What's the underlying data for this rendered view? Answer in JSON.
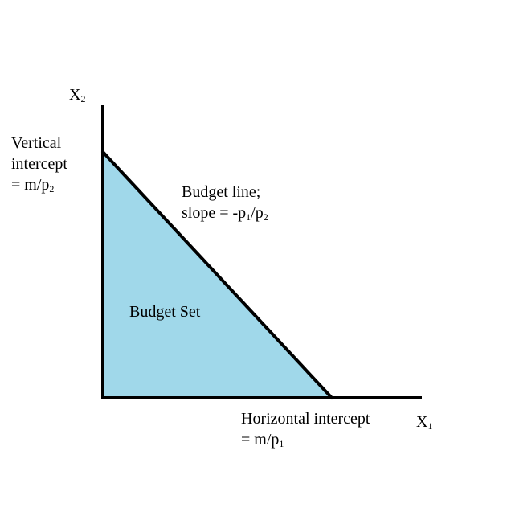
{
  "colors": {
    "budget_set_fill": "#a0d8ea",
    "line": "#000000",
    "background": "#ffffff"
  },
  "axes": {
    "y_label": {
      "letter": "X",
      "subscript": "2"
    },
    "x_label": {
      "letter": "X",
      "subscript": "1"
    }
  },
  "annotations": {
    "vertical_intercept": {
      "line1": "Vertical",
      "line2": "intercept",
      "line3_prefix": "= m/p",
      "line3_subscript": "2"
    },
    "budget_line": {
      "line1": "Budget line;",
      "line2_prefix": "slope = -p",
      "line2_sub1": "1",
      "line2_mid": "/p",
      "line2_sub2": "2"
    },
    "budget_set": {
      "label": "Budget Set"
    },
    "horizontal_intercept": {
      "line1": "Horizontal intercept",
      "line2_prefix": "= m/p",
      "line2_subscript": "1"
    }
  }
}
